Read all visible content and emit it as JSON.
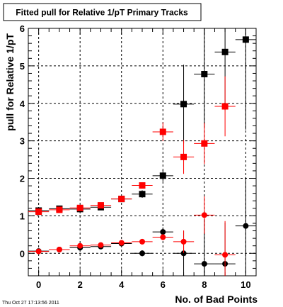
{
  "chart_data": {
    "type": "scatter",
    "title": "Fitted pull for Relative 1/pT Primary Tracks",
    "xlabel": "No. of Bad Points",
    "ylabel": "pull for Relative 1/pT",
    "xlim": [
      -0.5,
      10.5
    ],
    "ylim": [
      -0.6,
      6.0
    ],
    "x_ticks": [
      0,
      2,
      4,
      6,
      8,
      10
    ],
    "y_ticks": [
      0,
      1,
      2,
      3,
      4,
      5,
      6
    ],
    "grid": true,
    "series": [
      {
        "color": "#000000",
        "marker": "square",
        "x": [
          0,
          1,
          2,
          3,
          4,
          5,
          6,
          7,
          8,
          9,
          10
        ],
        "y": [
          1.14,
          1.19,
          1.18,
          1.23,
          1.45,
          1.58,
          2.07,
          3.98,
          4.78,
          5.37,
          5.7
        ],
        "yerr": [
          0.06,
          0.05,
          0.05,
          0.06,
          0.06,
          0.1,
          0.15,
          1.05,
          1.4,
          1.55,
          2.4
        ]
      },
      {
        "color": "#ff0000",
        "marker": "square",
        "x": [
          0,
          1,
          2,
          3,
          4,
          5,
          6,
          7,
          8,
          9
        ],
        "y": [
          1.11,
          1.16,
          1.21,
          1.28,
          1.45,
          1.81,
          3.24,
          2.57,
          2.93,
          3.92
        ],
        "yerr": [
          0.05,
          0.05,
          0.05,
          0.05,
          0.06,
          0.08,
          0.25,
          0.45,
          0.55,
          0.8
        ]
      },
      {
        "color": "#000000",
        "marker": "circle",
        "x": [
          0,
          1,
          2,
          3,
          4,
          5,
          6,
          7,
          8,
          9,
          10
        ],
        "y": [
          0.06,
          0.1,
          0.15,
          0.18,
          0.26,
          0.0,
          0.57,
          0.0,
          -0.28,
          -0.28,
          0.73
        ],
        "yerr": [
          0.05,
          0.04,
          0.05,
          0.05,
          0.06,
          0.08,
          0.12,
          0.6,
          1.2,
          1.1,
          1.3
        ]
      },
      {
        "color": "#ff0000",
        "marker": "circle",
        "x": [
          0,
          1,
          2,
          3,
          4,
          5,
          6,
          7,
          8,
          9
        ],
        "y": [
          0.05,
          0.1,
          0.2,
          0.22,
          0.28,
          0.31,
          0.43,
          0.31,
          1.02,
          -0.04
        ],
        "yerr": [
          0.04,
          0.04,
          0.04,
          0.05,
          0.05,
          0.07,
          0.08,
          0.3,
          0.5,
          0.9
        ]
      }
    ]
  },
  "footer": {
    "timestamp": "Thu Oct 27 17:13:56 2011"
  }
}
